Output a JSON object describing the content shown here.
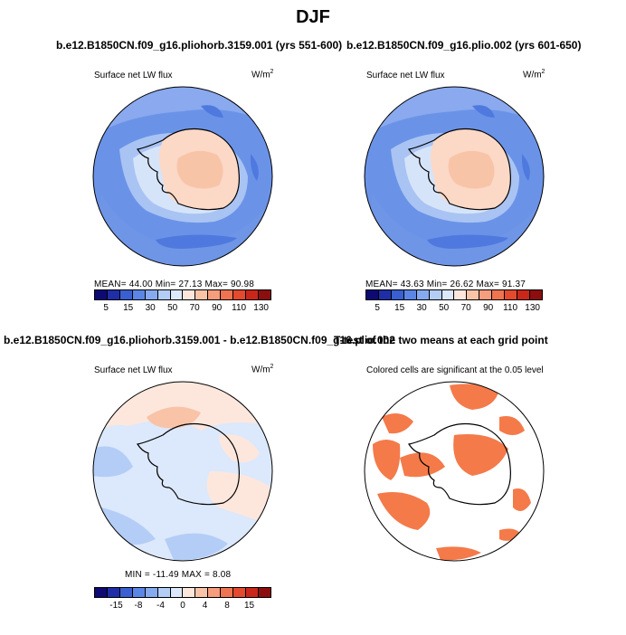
{
  "figure_title": "DJF",
  "panels": [
    {
      "title": "b.e12.B1850CN.f09_g16.pliohorb.3159.001 (yrs 551-600)",
      "variable": "Surface net LW flux",
      "units": "W/m",
      "units_exp": "2",
      "stats": "MEAN=  44.00   Min=  27.13   Max=  90.98"
    },
    {
      "title": "b.e12.B1850CN.f09_g16.plio.002 (yrs 601-650)",
      "variable": "Surface net LW flux",
      "units": "W/m",
      "units_exp": "2",
      "stats": "MEAN=  43.63   Min=  26.62   Max=  91.37"
    },
    {
      "title": "b.e12.B1850CN.f09_g16.pliohorb.3159.001 - b.e12.B1850CN.f09_g16.plio.002",
      "variable": "Surface net LW flux",
      "units": "W/m",
      "units_exp": "2",
      "stats": "MIN = -11.49  MAX =    8.08"
    },
    {
      "title": "T-test of the two means at each grid point",
      "subtitle": "Colored cells are significant at the 0.05 level"
    }
  ],
  "colorbar_abs": {
    "colors": [
      "#0d0a73",
      "#1f2ea6",
      "#3a5fd0",
      "#5b86e6",
      "#86aaf0",
      "#b3cdf6",
      "#dce8fb",
      "#fde7dd",
      "#f9c3a8",
      "#f59d7d",
      "#ef7451",
      "#e34a2e",
      "#c9271b",
      "#8c0e0e"
    ],
    "tick_labels": [
      "5",
      "15",
      "30",
      "50",
      "70",
      "90",
      "110",
      "130"
    ]
  },
  "colorbar_diff": {
    "colors": [
      "#0d0a73",
      "#1f2ea6",
      "#3a5fd0",
      "#5b86e6",
      "#86aaf0",
      "#b3cdf6",
      "#dce8fb",
      "#fde7dd",
      "#f9c3a8",
      "#f59d7d",
      "#ef7451",
      "#e34a2e",
      "#c9271b",
      "#8c0e0e"
    ],
    "tick_labels": [
      "-15",
      "-8",
      "-4",
      "0",
      "4",
      "8",
      "15"
    ]
  },
  "significance_color": "#f47a4a"
}
